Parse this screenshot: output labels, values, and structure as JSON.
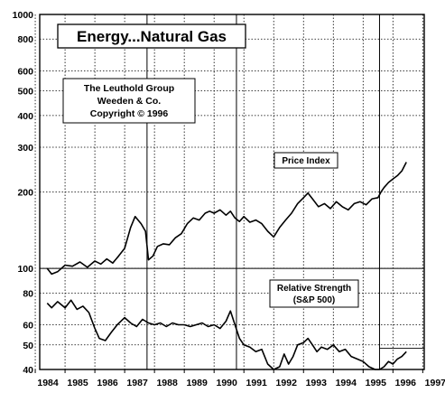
{
  "chart_data": {
    "type": "line",
    "title": "Energy...Natural Gas",
    "credits": [
      "The Leuthold Group",
      "Weeden & Co.",
      "Copyright © 1996"
    ],
    "xlabel": "",
    "ylabel": "",
    "y_scale": "log",
    "ylim": [
      40,
      1000
    ],
    "xlim": [
      1984,
      1997
    ],
    "grid": true,
    "y_ticks": [
      40,
      50,
      60,
      80,
      100,
      200,
      300,
      400,
      500,
      600,
      800,
      1000
    ],
    "y_tick_labels": [
      "40",
      "50",
      "60",
      "80",
      "100",
      "200",
      "300",
      "400",
      "500",
      "600",
      "800",
      "1000"
    ],
    "x_ticks": [
      1984,
      1985,
      1986,
      1987,
      1988,
      1989,
      1990,
      1991,
      1992,
      1993,
      1994,
      1995,
      1996,
      1997
    ],
    "x_tick_labels": [
      "1984",
      "1985",
      "1986",
      "1987",
      "1988",
      "1989",
      "1990",
      "1991",
      "1992",
      "1993",
      "1994",
      "1995",
      "1996",
      "1997"
    ],
    "series": [
      {
        "name": "Price Index",
        "label": "Price Index",
        "points": [
          [
            1984.4,
            100
          ],
          [
            1984.55,
            95
          ],
          [
            1984.75,
            97
          ],
          [
            1985.0,
            103
          ],
          [
            1985.25,
            102
          ],
          [
            1985.5,
            106
          ],
          [
            1985.75,
            101
          ],
          [
            1986.0,
            107
          ],
          [
            1986.2,
            104
          ],
          [
            1986.4,
            109
          ],
          [
            1986.6,
            105
          ],
          [
            1986.8,
            112
          ],
          [
            1987.0,
            120
          ],
          [
            1987.2,
            145
          ],
          [
            1987.35,
            160
          ],
          [
            1987.55,
            150
          ],
          [
            1987.7,
            140
          ],
          [
            1987.8,
            108
          ],
          [
            1987.95,
            112
          ],
          [
            1988.1,
            122
          ],
          [
            1988.3,
            125
          ],
          [
            1988.5,
            124
          ],
          [
            1988.7,
            132
          ],
          [
            1988.9,
            137
          ],
          [
            1989.1,
            150
          ],
          [
            1989.3,
            158
          ],
          [
            1989.5,
            155
          ],
          [
            1989.7,
            165
          ],
          [
            1989.85,
            168
          ],
          [
            1990.0,
            165
          ],
          [
            1990.2,
            170
          ],
          [
            1990.4,
            162
          ],
          [
            1990.55,
            168
          ],
          [
            1990.7,
            158
          ],
          [
            1990.85,
            153
          ],
          [
            1991.0,
            160
          ],
          [
            1991.2,
            152
          ],
          [
            1991.4,
            155
          ],
          [
            1991.6,
            150
          ],
          [
            1991.8,
            140
          ],
          [
            1992.0,
            133
          ],
          [
            1992.2,
            145
          ],
          [
            1992.4,
            155
          ],
          [
            1992.6,
            165
          ],
          [
            1992.8,
            180
          ],
          [
            1993.0,
            190
          ],
          [
            1993.15,
            198
          ],
          [
            1993.3,
            188
          ],
          [
            1993.5,
            175
          ],
          [
            1993.7,
            180
          ],
          [
            1993.9,
            172
          ],
          [
            1994.1,
            183
          ],
          [
            1994.3,
            175
          ],
          [
            1994.5,
            170
          ],
          [
            1994.7,
            180
          ],
          [
            1994.9,
            183
          ],
          [
            1995.1,
            178
          ],
          [
            1995.3,
            188
          ],
          [
            1995.5,
            190
          ],
          [
            1995.6,
            200
          ],
          [
            1995.7,
            208
          ],
          [
            1995.85,
            218
          ],
          [
            1996.0,
            225
          ],
          [
            1996.15,
            232
          ],
          [
            1996.3,
            242
          ],
          [
            1996.45,
            262
          ]
        ]
      },
      {
        "name": "Relative Strength (S&P 500)",
        "label_lines": [
          "Relative Strength",
          "(S&P 500)"
        ],
        "points": [
          [
            1984.4,
            73
          ],
          [
            1984.55,
            70
          ],
          [
            1984.75,
            74
          ],
          [
            1985.0,
            70
          ],
          [
            1985.2,
            75
          ],
          [
            1985.4,
            69
          ],
          [
            1985.6,
            71
          ],
          [
            1985.8,
            67
          ],
          [
            1986.0,
            58
          ],
          [
            1986.15,
            53
          ],
          [
            1986.35,
            52
          ],
          [
            1986.55,
            56
          ],
          [
            1986.75,
            60
          ],
          [
            1987.0,
            64
          ],
          [
            1987.2,
            61
          ],
          [
            1987.4,
            59
          ],
          [
            1987.6,
            63
          ],
          [
            1987.8,
            61
          ],
          [
            1988.0,
            60
          ],
          [
            1988.2,
            61
          ],
          [
            1988.4,
            59
          ],
          [
            1988.6,
            61
          ],
          [
            1988.8,
            60
          ],
          [
            1989.0,
            60
          ],
          [
            1989.2,
            59
          ],
          [
            1989.4,
            60
          ],
          [
            1989.6,
            61
          ],
          [
            1989.8,
            59
          ],
          [
            1990.0,
            60
          ],
          [
            1990.2,
            58
          ],
          [
            1990.4,
            62
          ],
          [
            1990.55,
            68
          ],
          [
            1990.7,
            60
          ],
          [
            1990.85,
            53
          ],
          [
            1991.0,
            50
          ],
          [
            1991.2,
            49
          ],
          [
            1991.4,
            47
          ],
          [
            1991.6,
            48
          ],
          [
            1991.8,
            42
          ],
          [
            1992.0,
            40
          ],
          [
            1992.2,
            41
          ],
          [
            1992.35,
            46
          ],
          [
            1992.5,
            42
          ],
          [
            1992.65,
            45
          ],
          [
            1992.8,
            50
          ],
          [
            1993.0,
            51
          ],
          [
            1993.15,
            53
          ],
          [
            1993.3,
            50
          ],
          [
            1993.45,
            47
          ],
          [
            1993.6,
            49
          ],
          [
            1993.8,
            48
          ],
          [
            1994.0,
            50
          ],
          [
            1994.2,
            47
          ],
          [
            1994.4,
            48
          ],
          [
            1994.6,
            45
          ],
          [
            1994.8,
            44
          ],
          [
            1995.0,
            43
          ],
          [
            1995.2,
            41
          ],
          [
            1995.4,
            40
          ],
          [
            1995.55,
            40
          ],
          [
            1995.7,
            41
          ],
          [
            1995.85,
            43
          ],
          [
            1996.0,
            42
          ],
          [
            1996.15,
            44
          ],
          [
            1996.3,
            45
          ],
          [
            1996.45,
            47
          ]
        ]
      }
    ]
  }
}
